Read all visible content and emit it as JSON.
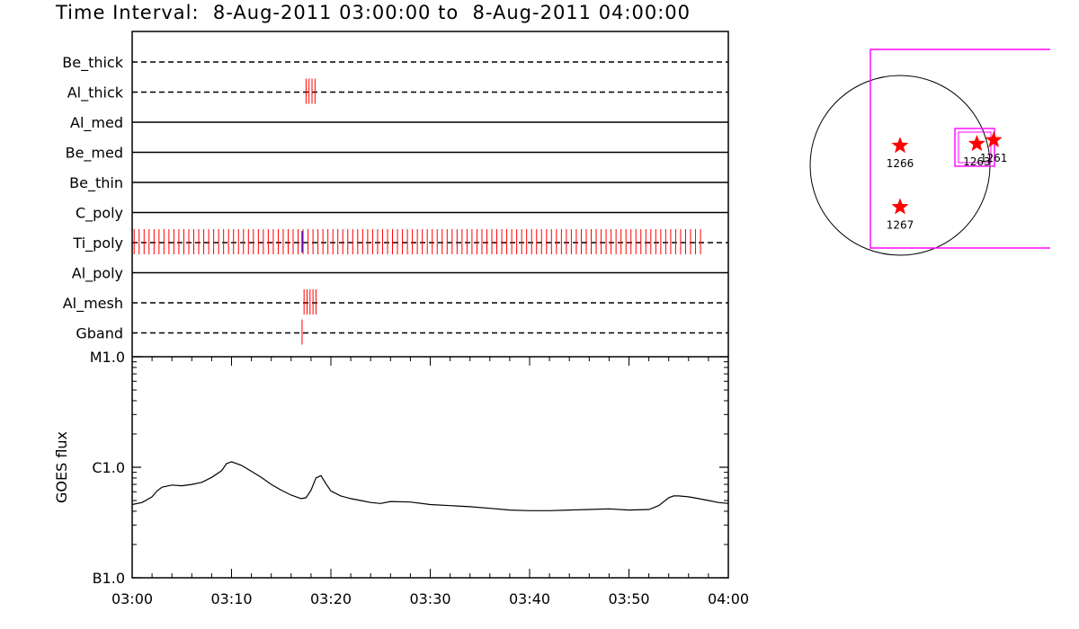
{
  "title": "Time Interval:  8-Aug-2011 03:00:00 to  8-Aug-2011 04:00:00",
  "colors": {
    "event": "#ff0000",
    "event_alt": "#0000ff",
    "fov": "#ff00ff",
    "axis": "#000000"
  },
  "chart_data": [
    {
      "type": "timeline",
      "name": "filter-occupancy",
      "x_range_minutes": [
        0,
        60
      ],
      "rows": [
        {
          "label": "Be_thick",
          "style": "dashed",
          "events": []
        },
        {
          "label": "Al_thick",
          "style": "dashed",
          "events": [
            17.5,
            17.8,
            18.1,
            18.4
          ]
        },
        {
          "label": "Al_med",
          "style": "solid",
          "events": []
        },
        {
          "label": "Be_med",
          "style": "solid",
          "events": []
        },
        {
          "label": "Be_thin",
          "style": "solid",
          "events": []
        },
        {
          "label": "C_poly",
          "style": "solid",
          "events": []
        },
        {
          "label": "Ti_poly",
          "style": "dashed",
          "events": [],
          "event_range": [
            0.2,
            57.5
          ],
          "event_step": 0.5,
          "blue_events": [
            17.1
          ]
        },
        {
          "label": "Al_poly",
          "style": "solid",
          "events": []
        },
        {
          "label": "Al_mesh",
          "style": "dashed",
          "events": [
            17.3,
            17.6,
            17.9,
            18.2,
            18.5
          ]
        },
        {
          "label": "Gband",
          "style": "dashed",
          "events": [
            17.1
          ]
        }
      ]
    },
    {
      "type": "line",
      "name": "goes-flux",
      "ylabel": "GOES flux",
      "y_scale": "log",
      "y_ticks": [
        {
          "label": "M1.0",
          "value": 1e-05
        },
        {
          "label": "C1.0",
          "value": 1e-06
        },
        {
          "label": "B1.0",
          "value": 1e-07
        }
      ],
      "ylim": [
        1e-07,
        1e-05
      ],
      "x_ticks": [
        "03:00",
        "03:10",
        "03:20",
        "03:30",
        "03:40",
        "03:50",
        "04:00"
      ],
      "x_minutes": [
        0,
        1,
        2,
        2.5,
        3,
        4,
        5,
        6,
        7,
        8,
        9,
        9.5,
        10,
        11,
        12,
        13,
        14,
        15,
        16,
        17,
        17.5,
        18,
        18.5,
        19,
        19.5,
        20,
        21,
        22,
        23,
        24,
        25,
        26,
        28,
        30,
        32,
        34,
        36,
        38,
        40,
        42,
        44,
        46,
        48,
        50,
        52,
        53,
        54,
        54.5,
        55,
        56,
        57,
        58,
        59,
        60
      ],
      "y_flux": [
        4.6e-07,
        4.8e-07,
        5.4e-07,
        6.1e-07,
        6.6e-07,
        6.9e-07,
        6.8e-07,
        7e-07,
        7.3e-07,
        8.1e-07,
        9.3e-07,
        1.08e-06,
        1.12e-06,
        1.04e-06,
        9.2e-07,
        8.1e-07,
        7e-07,
        6.2e-07,
        5.6e-07,
        5.2e-07,
        5.3e-07,
        6.2e-07,
        8e-07,
        8.4e-07,
        7.1e-07,
        6.1e-07,
        5.5e-07,
        5.2e-07,
        5e-07,
        4.8e-07,
        4.7e-07,
        4.9e-07,
        4.85e-07,
        4.6e-07,
        4.5e-07,
        4.4e-07,
        4.25e-07,
        4.1e-07,
        4.05e-07,
        4.05e-07,
        4.1e-07,
        4.15e-07,
        4.2e-07,
        4.1e-07,
        4.15e-07,
        4.5e-07,
        5.3e-07,
        5.5e-07,
        5.5e-07,
        5.4e-07,
        5.2e-07,
        5e-07,
        4.8e-07,
        4.7e-07
      ]
    },
    {
      "type": "map",
      "name": "solar-disk",
      "regions": [
        {
          "label": "1266",
          "x_arcsec": 0,
          "y_arcsec": 210
        },
        {
          "label": "1267",
          "x_arcsec": 0,
          "y_arcsec": -445
        },
        {
          "label": "1263",
          "x_arcsec": 820,
          "y_arcsec": 230
        },
        {
          "label": "1261",
          "x_arcsec": 1000,
          "y_arcsec": 270
        }
      ]
    }
  ]
}
